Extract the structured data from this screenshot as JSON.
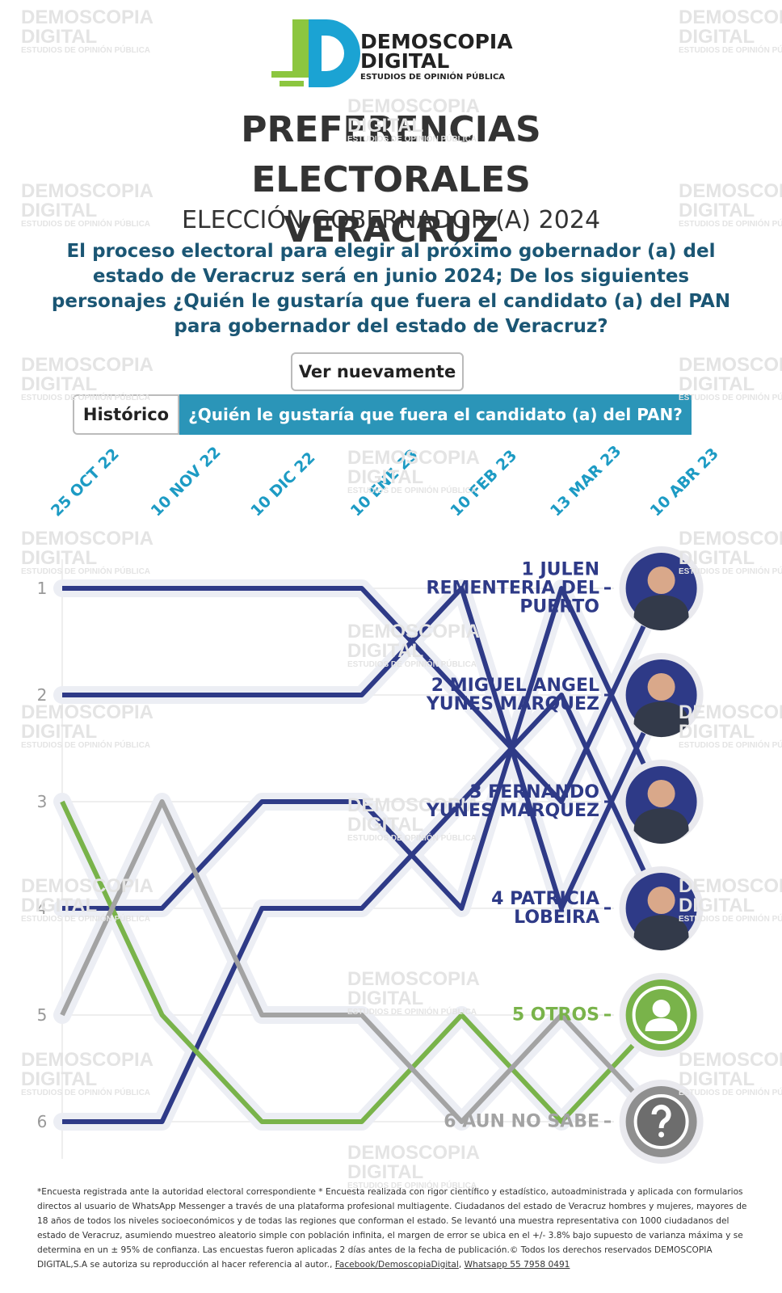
{
  "header": {
    "logo_line1": "DEMOSCOPIA",
    "logo_line2": "DIGITAL",
    "logo_line3": "ESTUDIOS DE OPINIÓN PÚBLICA",
    "title": "PREFERENCIAS ELECTORALES VERACRUZ",
    "subtitle": "ELECCIÓN GOBERNADOR (A) 2024",
    "question": "El proceso electoral para elegir al próximo gobernador (a) del estado de Veracruz será en junio 2024; De los siguientes personajes ¿Quién le gustaría que fuera el candidato (a) del PAN para gobernador del estado de Veracruz?",
    "button": "Ver nuevamente",
    "tab_history": "Histórico",
    "tab_current": "¿Quién le gustaría que fuera el candidato (a) del PAN?"
  },
  "watermark": {
    "line1": "DEMOSCOPIA",
    "line2": "DIGITAL",
    "line3": "ESTUDIOS DE OPINIÓN PÚBLICA"
  },
  "chart_data": {
    "type": "bump",
    "categories": [
      "25 OCT 22",
      "10 NOV 22",
      "10 DIC 22",
      "10 ENE 23",
      "10 FEB 23",
      "13 MAR 23",
      "10 ABR 23"
    ],
    "ylim": [
      0.5,
      6.5
    ],
    "yticks": [
      1,
      2,
      3,
      4,
      5,
      6
    ],
    "y_inverted": true,
    "grid": true,
    "series": [
      {
        "name": "1 JULEN REMENTERIA DEL PUERTO",
        "color": "#2e3a87",
        "values": [
          1,
          1,
          1,
          1,
          2,
          3,
          1
        ]
      },
      {
        "name": "2 MIGUEL ANGEL YUNES MARQUEZ",
        "color": "#2e3a87",
        "values": [
          2,
          2,
          2,
          2,
          1,
          4,
          2
        ]
      },
      {
        "name": "3 FERNANDO YUNES MARQUEZ",
        "color": "#2e3a87",
        "values": [
          4,
          4,
          3,
          3,
          4,
          1,
          3
        ]
      },
      {
        "name": "4 PATRICIA LOBEIRA",
        "color": "#2e3a87",
        "values": [
          6,
          6,
          4,
          4,
          3,
          2,
          4
        ]
      },
      {
        "name": "5 OTROS",
        "color": "#79b34a",
        "values": [
          3,
          5,
          6,
          6,
          5,
          6,
          5
        ]
      },
      {
        "name": "6 AUN NO SABE",
        "color": "#a3a3a3",
        "values": [
          5,
          3,
          5,
          5,
          6,
          5,
          6
        ]
      }
    ]
  },
  "footer": {
    "note": "*Encuesta registrada ante la autoridad electoral correspondiente * Encuesta realizada con rigor científico y estadístico, autoadministrada y aplicada con formularios directos al usuario de WhatsApp Messenger a través de una plataforma profesional multiagente. Ciudadanos del estado de Veracruz hombres y mujeres, mayores de 18 años de todos los niveles socioeconómicos y de todas las regiones que conforman el estado. Se levantó una muestra representativa con 1000 ciudadanos del estado de Veracruz, asumiendo muestreo aleatorio simple con población infinita, el margen de error se ubica en el +/- 3.8% bajo supuesto de varianza máxima y se determina en un ± 95% de confianza. Las encuestas fueron aplicadas 2 días antes de la fecha de publicación.© Todos los derechos reservados DEMOSCOPIA DIGITAL,S.A se autoriza su reproducción al hacer referencia al autor.,",
    "link1": "Facebook/DemoscopiaDigital",
    "link2": "Whatsapp 55 7958 0491"
  }
}
